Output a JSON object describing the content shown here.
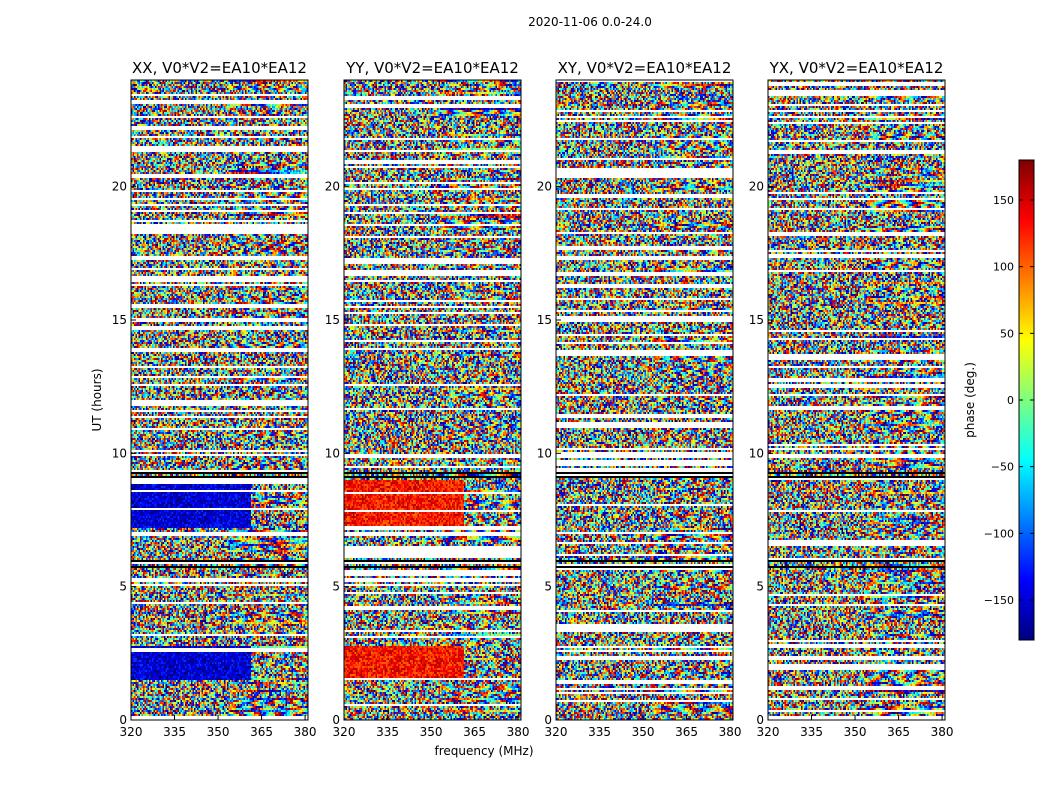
{
  "chart_data": {
    "type": "heatmap",
    "suptitle": "2020-11-06 0.0-24.0",
    "xlabel": "frequency (MHz)",
    "ylabel": "UT (hours)",
    "xlim": [
      320,
      381
    ],
    "ylim": [
      0,
      24
    ],
    "xticks": [
      320,
      335,
      350,
      365,
      380
    ],
    "yticks": [
      0,
      5,
      10,
      15,
      20
    ],
    "panels": [
      {
        "title": "XX, V0*V2=EA10*EA12",
        "pol": "XX"
      },
      {
        "title": "YY, V0*V2=EA10*EA12",
        "pol": "YY"
      },
      {
        "title": "XY, V0*V2=EA10*EA12",
        "pol": "XY"
      },
      {
        "title": "YX, V0*V2=EA10*EA12",
        "pol": "YX"
      }
    ],
    "colorbar": {
      "label": "phase (deg.)",
      "range": [
        -180,
        180
      ],
      "ticks": [
        150,
        100,
        50,
        0,
        -50,
        -100,
        -150
      ],
      "tick_labels": [
        "150",
        "100",
        "50",
        "0",
        "−50",
        "−100",
        "−150"
      ],
      "colormap": "jet",
      "colors": [
        "#00007f",
        "#0000ff",
        "#007fff",
        "#00ffff",
        "#7fff7f",
        "#ffff00",
        "#ff7f00",
        "#ff0000",
        "#7f0000"
      ]
    },
    "structured_regions": [
      {
        "pols": [
          "XX"
        ],
        "ut": [
          1.5,
          2.8
        ],
        "freq": [
          320,
          361
        ],
        "phase_deg": -150
      },
      {
        "pols": [
          "XX"
        ],
        "ut": [
          7.2,
          9.0
        ],
        "freq": [
          320,
          361
        ],
        "phase_deg": -150
      },
      {
        "pols": [
          "YY"
        ],
        "ut": [
          1.5,
          2.8
        ],
        "freq": [
          320,
          361
        ],
        "phase_deg": 130
      },
      {
        "pols": [
          "YY"
        ],
        "ut": [
          7.2,
          9.0
        ],
        "freq": [
          320,
          361
        ],
        "phase_deg": 130
      }
    ]
  }
}
